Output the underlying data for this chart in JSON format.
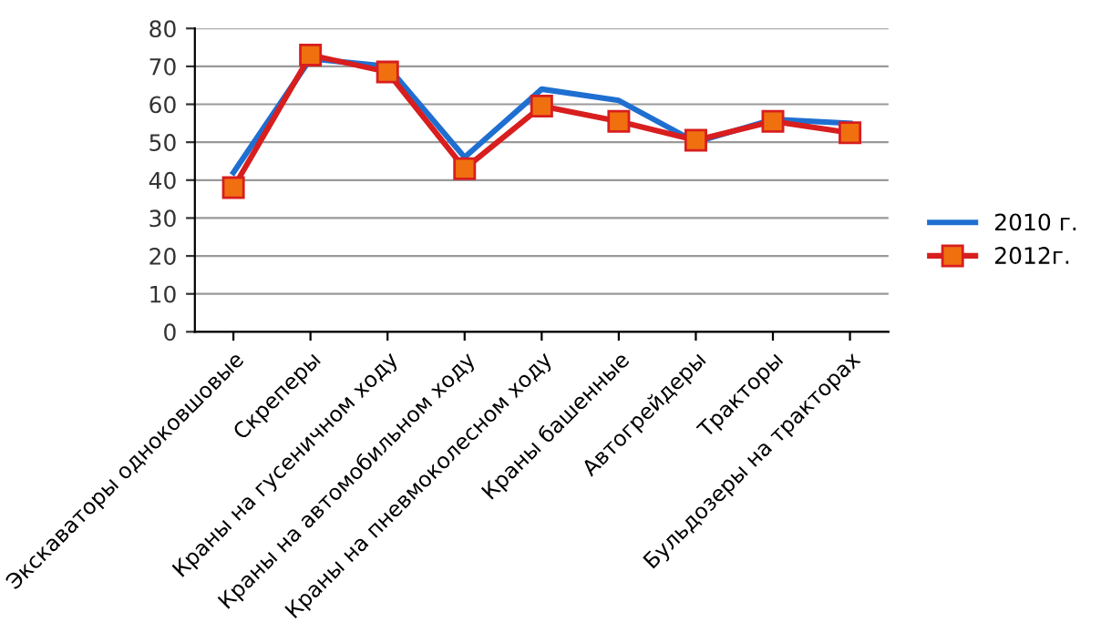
{
  "chart_data": {
    "type": "line",
    "categories": [
      "Экскаваторы одноковшовые",
      "Скреперы",
      "Краны на гусеничном ходу",
      "Краны на автомобильном ходу",
      "Краны на пневмоколесном ходу",
      "Краны башенные",
      "Автогрейдеры",
      "Тракторы",
      "Бульдозеры на тракторах"
    ],
    "series": [
      {
        "name": "2010 г.",
        "color": "#1f6fd1",
        "marker": "none",
        "values": [
          42,
          72,
          70,
          46,
          64,
          61,
          50,
          56,
          55
        ]
      },
      {
        "name": "2012г.",
        "color": "#d81e1e",
        "marker": "square",
        "values": [
          38,
          73,
          68.5,
          43,
          59.5,
          55.5,
          50.5,
          55.5,
          52.5
        ]
      }
    ],
    "ylim": [
      0,
      80
    ],
    "yticks": [
      0,
      10,
      20,
      30,
      40,
      50,
      60,
      70,
      80
    ],
    "grid": "y",
    "legend": "right",
    "line_style": "solid"
  }
}
